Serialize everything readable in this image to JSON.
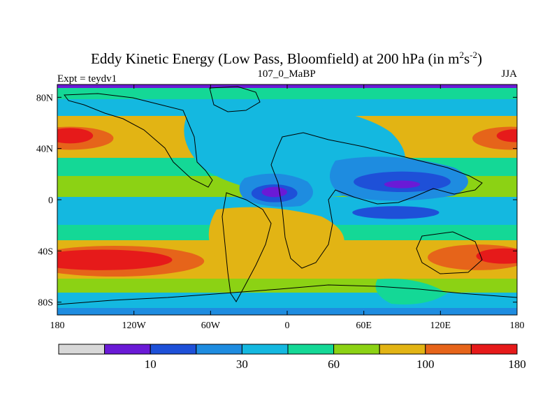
{
  "chart_data": {
    "type": "heatmap",
    "title": "Eddy Kinetic Energy (Low Pass, Bloomfield) at 200 hPa (in m",
    "title_unit_m_exp": "2",
    "title_unit_s": "s",
    "title_unit_s_exp": "-2",
    "title_close": ")",
    "subtitle_left": "Expt = teydv1",
    "subtitle_center": "107_0_MaBP",
    "subtitle_right": "JJA",
    "x_range": [
      -180,
      180
    ],
    "y_range": [
      -90,
      90
    ],
    "x_ticks": [
      {
        "value": -180,
        "label": "180"
      },
      {
        "value": -120,
        "label": "120W"
      },
      {
        "value": -60,
        "label": "60W"
      },
      {
        "value": 0,
        "label": "0"
      },
      {
        "value": 60,
        "label": "60E"
      },
      {
        "value": 120,
        "label": "120E"
      },
      {
        "value": 180,
        "label": "180"
      }
    ],
    "y_ticks": [
      {
        "value": 80,
        "label": "80N"
      },
      {
        "value": 40,
        "label": "40N"
      },
      {
        "value": 0,
        "label": "0"
      },
      {
        "value": -40,
        "label": "40S"
      },
      {
        "value": -80,
        "label": "80S"
      }
    ],
    "colorbar": {
      "colors": [
        "#d8d8d8",
        "#6a1ad6",
        "#1e50d8",
        "#1e8ce0",
        "#14b8e0",
        "#14d896",
        "#8cd214",
        "#e2b414",
        "#e6641a",
        "#e61a1a"
      ],
      "labels": [
        {
          "after_index": 1,
          "label": "10"
        },
        {
          "after_index": 3,
          "label": "30"
        },
        {
          "after_index": 5,
          "label": "60"
        },
        {
          "after_index": 7,
          "label": "100"
        },
        {
          "after_index": 9,
          "label": "180"
        }
      ]
    },
    "field_blobs": [
      {
        "lon": -170,
        "lat": 48,
        "rlon": 34,
        "rlat": 9,
        "level": 8
      },
      {
        "lon": -170,
        "lat": 50,
        "rlon": 18,
        "rlat": 6,
        "level": 9
      },
      {
        "lon": 175,
        "lat": 48,
        "rlon": 30,
        "rlat": 9,
        "level": 8
      },
      {
        "lon": 178,
        "lat": 50,
        "rlon": 14,
        "rlat": 5,
        "level": 9
      },
      {
        "lon": -135,
        "lat": -48,
        "rlon": 70,
        "rlat": 12,
        "level": 8
      },
      {
        "lon": -145,
        "lat": -47,
        "rlon": 55,
        "rlat": 8,
        "level": 9
      },
      {
        "lon": 150,
        "lat": -45,
        "rlon": 40,
        "rlat": 10,
        "level": 8
      },
      {
        "lon": 170,
        "lat": -44,
        "rlon": 22,
        "rlat": 6,
        "level": 9
      },
      {
        "lon": -10,
        "lat": 5,
        "rlon": 18,
        "rlat": 7,
        "level": 2
      },
      {
        "lon": -10,
        "lat": 6,
        "rlon": 10,
        "rlat": 4,
        "level": 1
      },
      {
        "lon": 90,
        "lat": 14,
        "rlon": 38,
        "rlat": 8,
        "level": 2
      },
      {
        "lon": 90,
        "lat": 12,
        "rlon": 14,
        "rlat": 3,
        "level": 1
      },
      {
        "lon": 85,
        "lat": -10,
        "rlon": 34,
        "rlat": 5,
        "level": 2
      }
    ]
  }
}
